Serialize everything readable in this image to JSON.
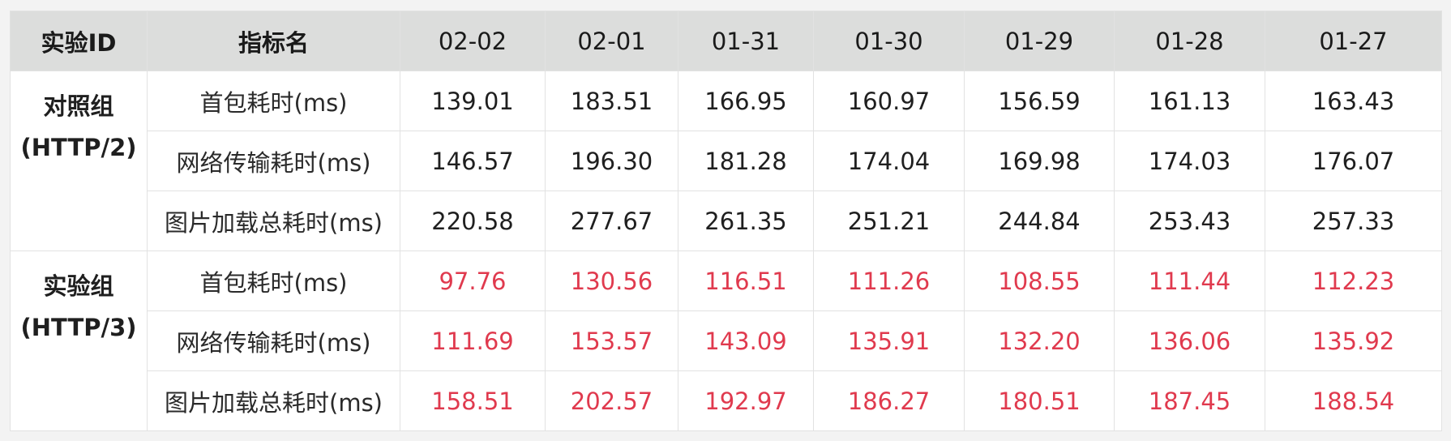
{
  "header": {
    "group_label": "实验ID",
    "metric_label": "指标名",
    "dates": [
      "02-02",
      "02-01",
      "01-31",
      "01-30",
      "01-29",
      "01-28",
      "01-27"
    ]
  },
  "groups": [
    {
      "name": "对照组",
      "protocol": "(HTTP/2)",
      "rows": [
        {
          "metric": "首包耗时(ms)",
          "values": [
            "139.01",
            "183.51",
            "166.95",
            "160.97",
            "156.59",
            "161.13",
            "163.43"
          ]
        },
        {
          "metric": "网络传输耗时(ms)",
          "values": [
            "146.57",
            "196.30",
            "181.28",
            "174.04",
            "169.98",
            "174.03",
            "176.07"
          ]
        },
        {
          "metric": "图片加载总耗时(ms)",
          "values": [
            "220.58",
            "277.67",
            "261.35",
            "251.21",
            "244.84",
            "253.43",
            "257.33"
          ]
        }
      ]
    },
    {
      "name": "实验组",
      "protocol": "(HTTP/3)",
      "rows": [
        {
          "metric": "首包耗时(ms)",
          "values": [
            "97.76",
            "130.56",
            "116.51",
            "111.26",
            "108.55",
            "111.44",
            "112.23"
          ]
        },
        {
          "metric": "网络传输耗时(ms)",
          "values": [
            "111.69",
            "153.57",
            "143.09",
            "135.91",
            "132.20",
            "136.06",
            "135.92"
          ]
        },
        {
          "metric": "图片加载总耗时(ms)",
          "values": [
            "158.51",
            "202.57",
            "192.97",
            "186.27",
            "180.51",
            "187.45",
            "188.54"
          ]
        }
      ]
    }
  ],
  "colors": {
    "header_bg": "#dcdddc",
    "highlight_value": "#e03a4e",
    "border": "#e2e2e2"
  }
}
